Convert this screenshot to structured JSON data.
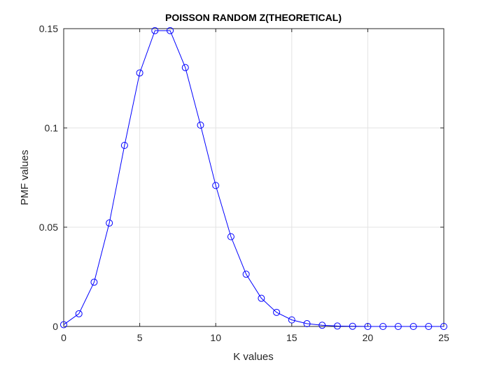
{
  "chart_data": {
    "type": "line",
    "title": "POISSON RANDOM Z(THEORETICAL)",
    "xlabel": "K values",
    "ylabel": "PMF values",
    "xlim": [
      0,
      25
    ],
    "ylim": [
      0,
      0.15
    ],
    "xticks": [
      0,
      5,
      10,
      15,
      20,
      25
    ],
    "xtick_labels": [
      "0",
      "5",
      "10",
      "15",
      "20",
      "25"
    ],
    "yticks": [
      0,
      0.05,
      0.1,
      0.15
    ],
    "ytick_labels": [
      "0",
      "0.05",
      "0.1",
      "0.15"
    ],
    "grid": true,
    "marker": "circle",
    "series": [
      {
        "color": "#0000ff",
        "x": [
          0,
          1,
          2,
          3,
          4,
          5,
          6,
          7,
          8,
          9,
          10,
          11,
          12,
          13,
          14,
          15,
          16,
          17,
          18,
          19,
          20,
          21,
          22,
          23,
          24,
          25
        ],
        "y": [
          0.0009,
          0.0064,
          0.0223,
          0.0521,
          0.0912,
          0.1277,
          0.149,
          0.149,
          0.1304,
          0.1014,
          0.071,
          0.0452,
          0.0263,
          0.0142,
          0.0071,
          0.0033,
          0.0014,
          0.0006,
          0.0002,
          0.0001,
          0.0,
          0.0,
          0.0,
          0.0,
          0.0,
          0.0
        ]
      }
    ]
  }
}
